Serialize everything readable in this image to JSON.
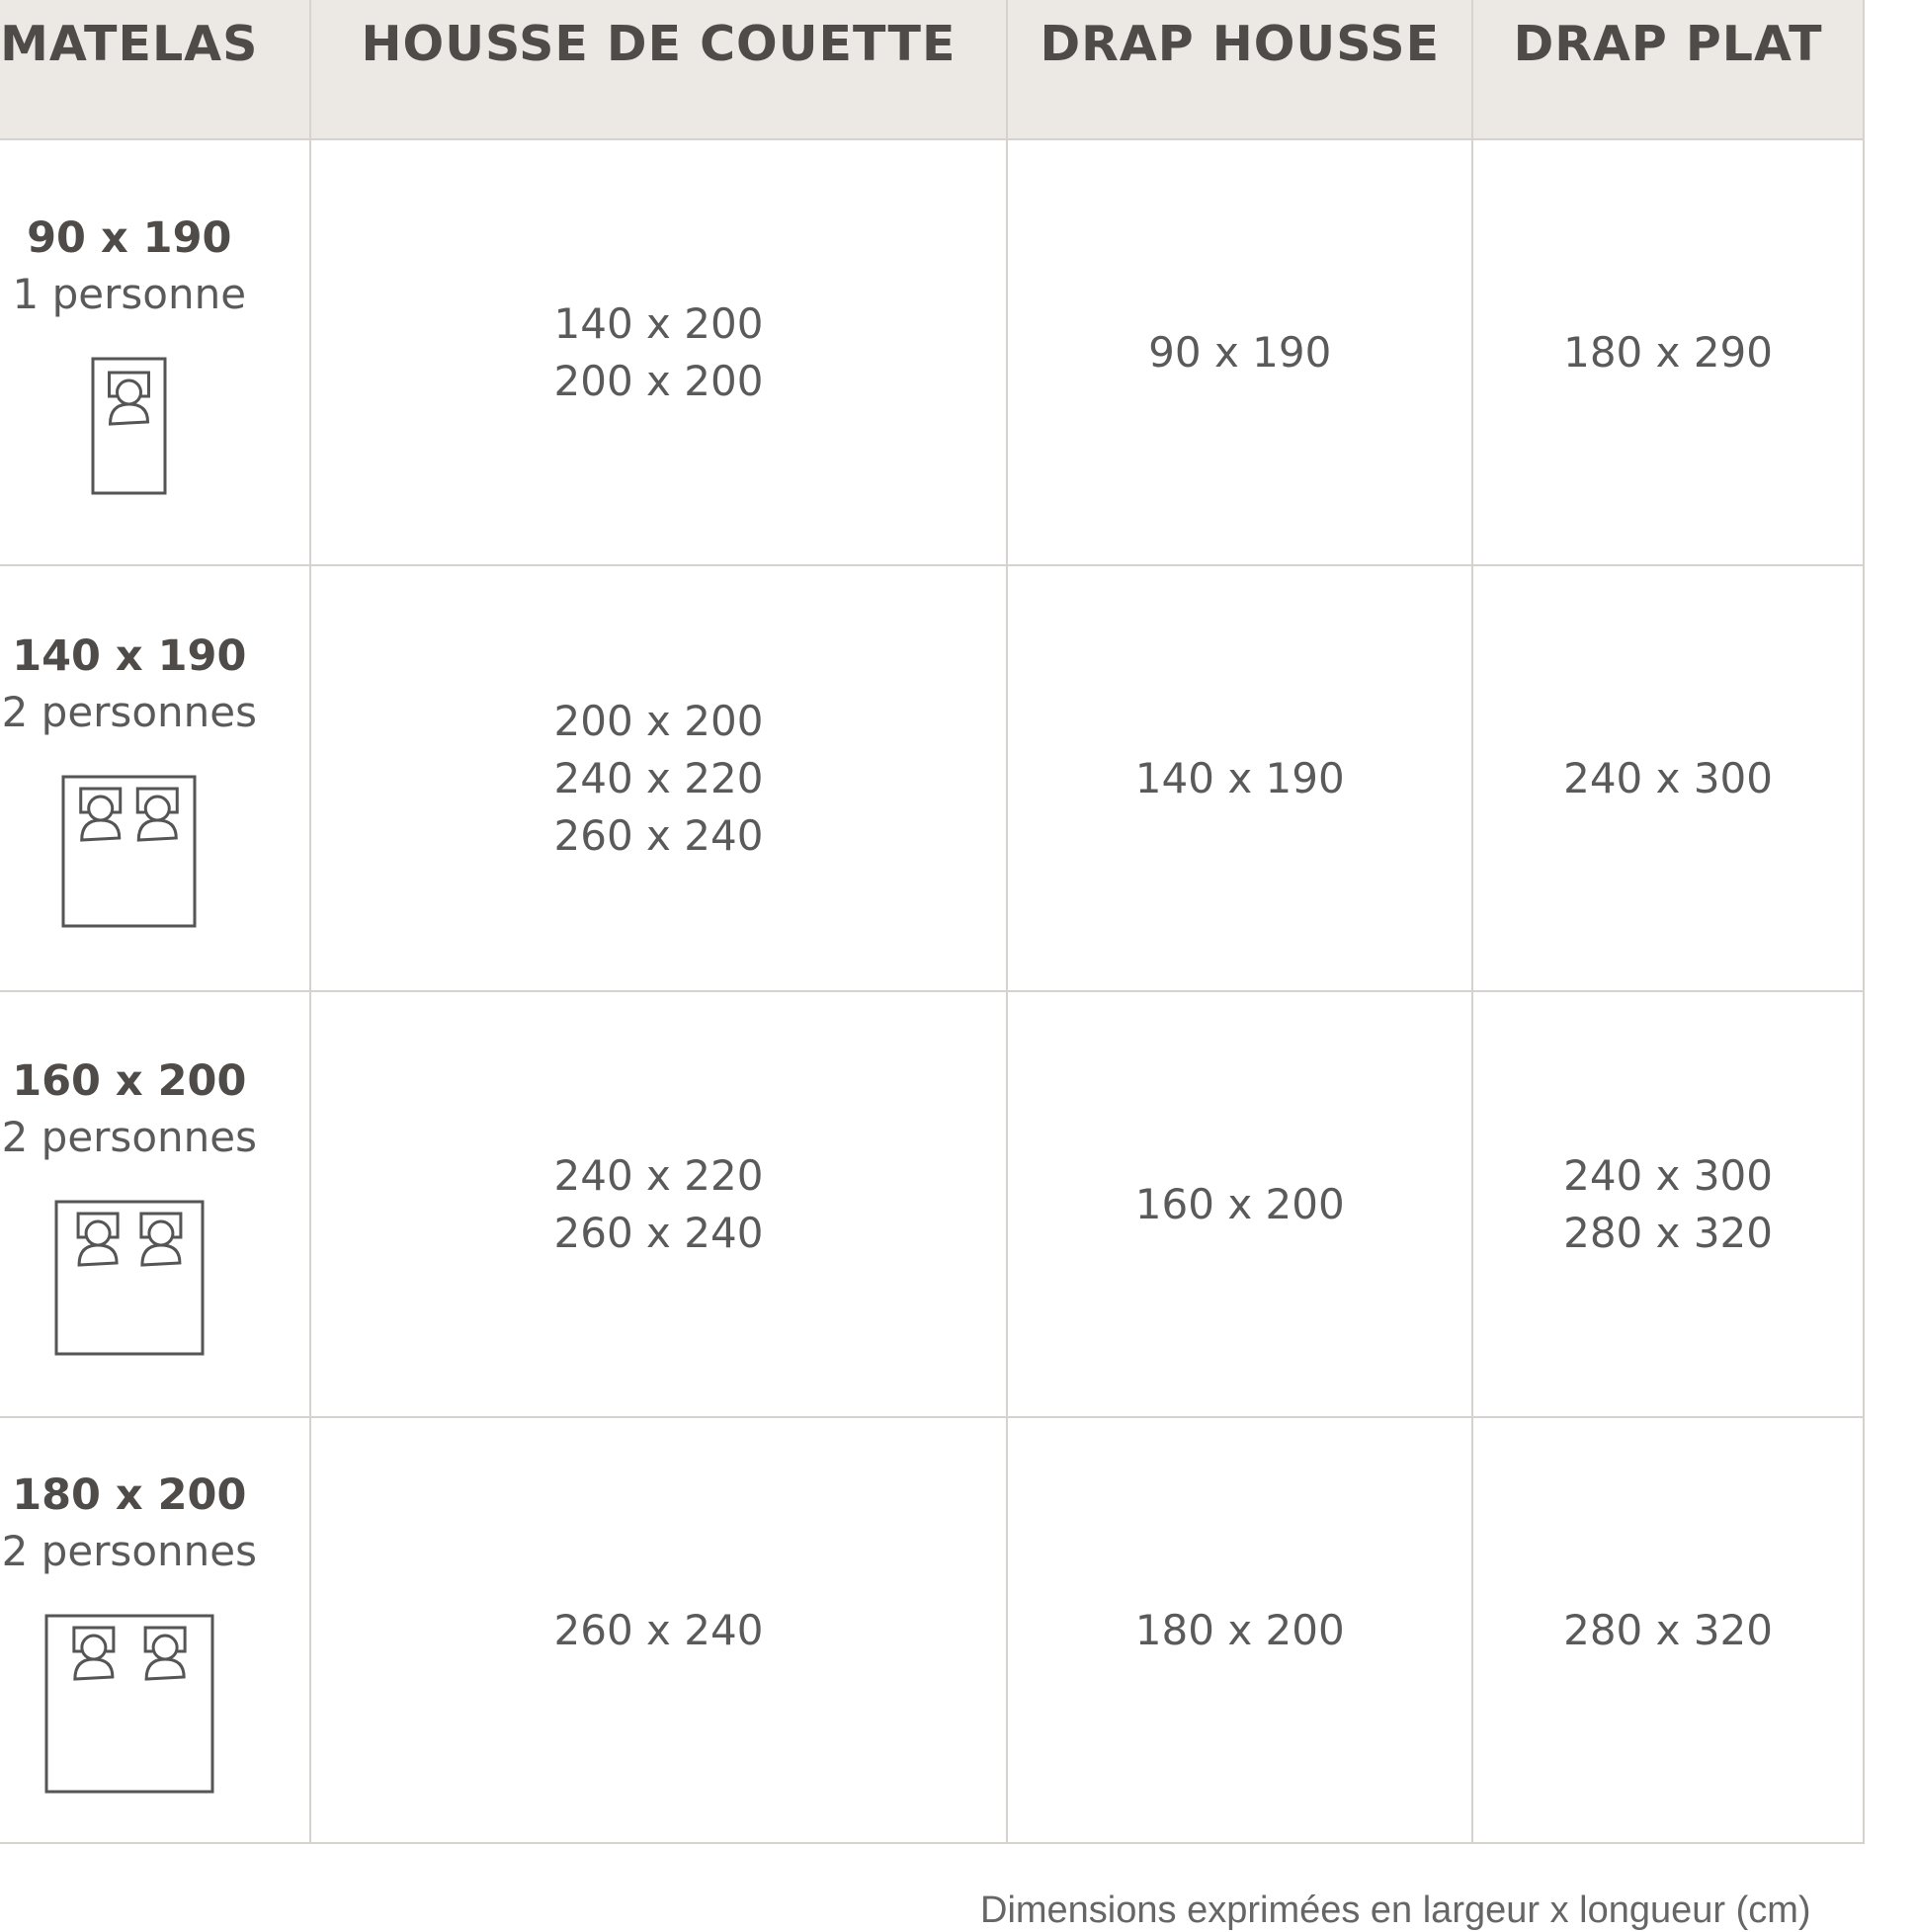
{
  "headers": [
    "MATELAS",
    "HOUSSE DE COUETTE",
    "DRAP HOUSSE",
    "DRAP PLAT"
  ],
  "rows": [
    {
      "matelas_size": "90 x 190",
      "matelas_persons": "1 personne",
      "icon": "single-bed-icon",
      "housse_de_couette": [
        "140 x 200",
        "200 x 200"
      ],
      "drap_housse": [
        "90 x 190"
      ],
      "drap_plat": [
        "180 x 290"
      ]
    },
    {
      "matelas_size": "140 x 190",
      "matelas_persons": "2 personnes",
      "icon": "double-bed-icon",
      "housse_de_couette": [
        "200 x 200",
        "240 x 220",
        "260 x 240"
      ],
      "drap_housse": [
        "140 x 190"
      ],
      "drap_plat": [
        "240 x 300"
      ]
    },
    {
      "matelas_size": "160 x 200",
      "matelas_persons": "2 personnes",
      "icon": "queen-bed-icon",
      "housse_de_couette": [
        "240 x 220",
        "260 x 240"
      ],
      "drap_housse": [
        "160 x 200"
      ],
      "drap_plat": [
        "240 x 300",
        "280 x 320"
      ]
    },
    {
      "matelas_size": "180 x 200",
      "matelas_persons": "2 personnes",
      "icon": "king-bed-icon",
      "housse_de_couette": [
        "260 x 240"
      ],
      "drap_housse": [
        "180 x 200"
      ],
      "drap_plat": [
        "280 x 320"
      ]
    }
  ],
  "footer_note": "Dimensions exprimées en largeur x longueur (cm)",
  "colors": {
    "header_bg": "#ece8e3",
    "grid": "#d6d3cf",
    "text": "#555555"
  }
}
